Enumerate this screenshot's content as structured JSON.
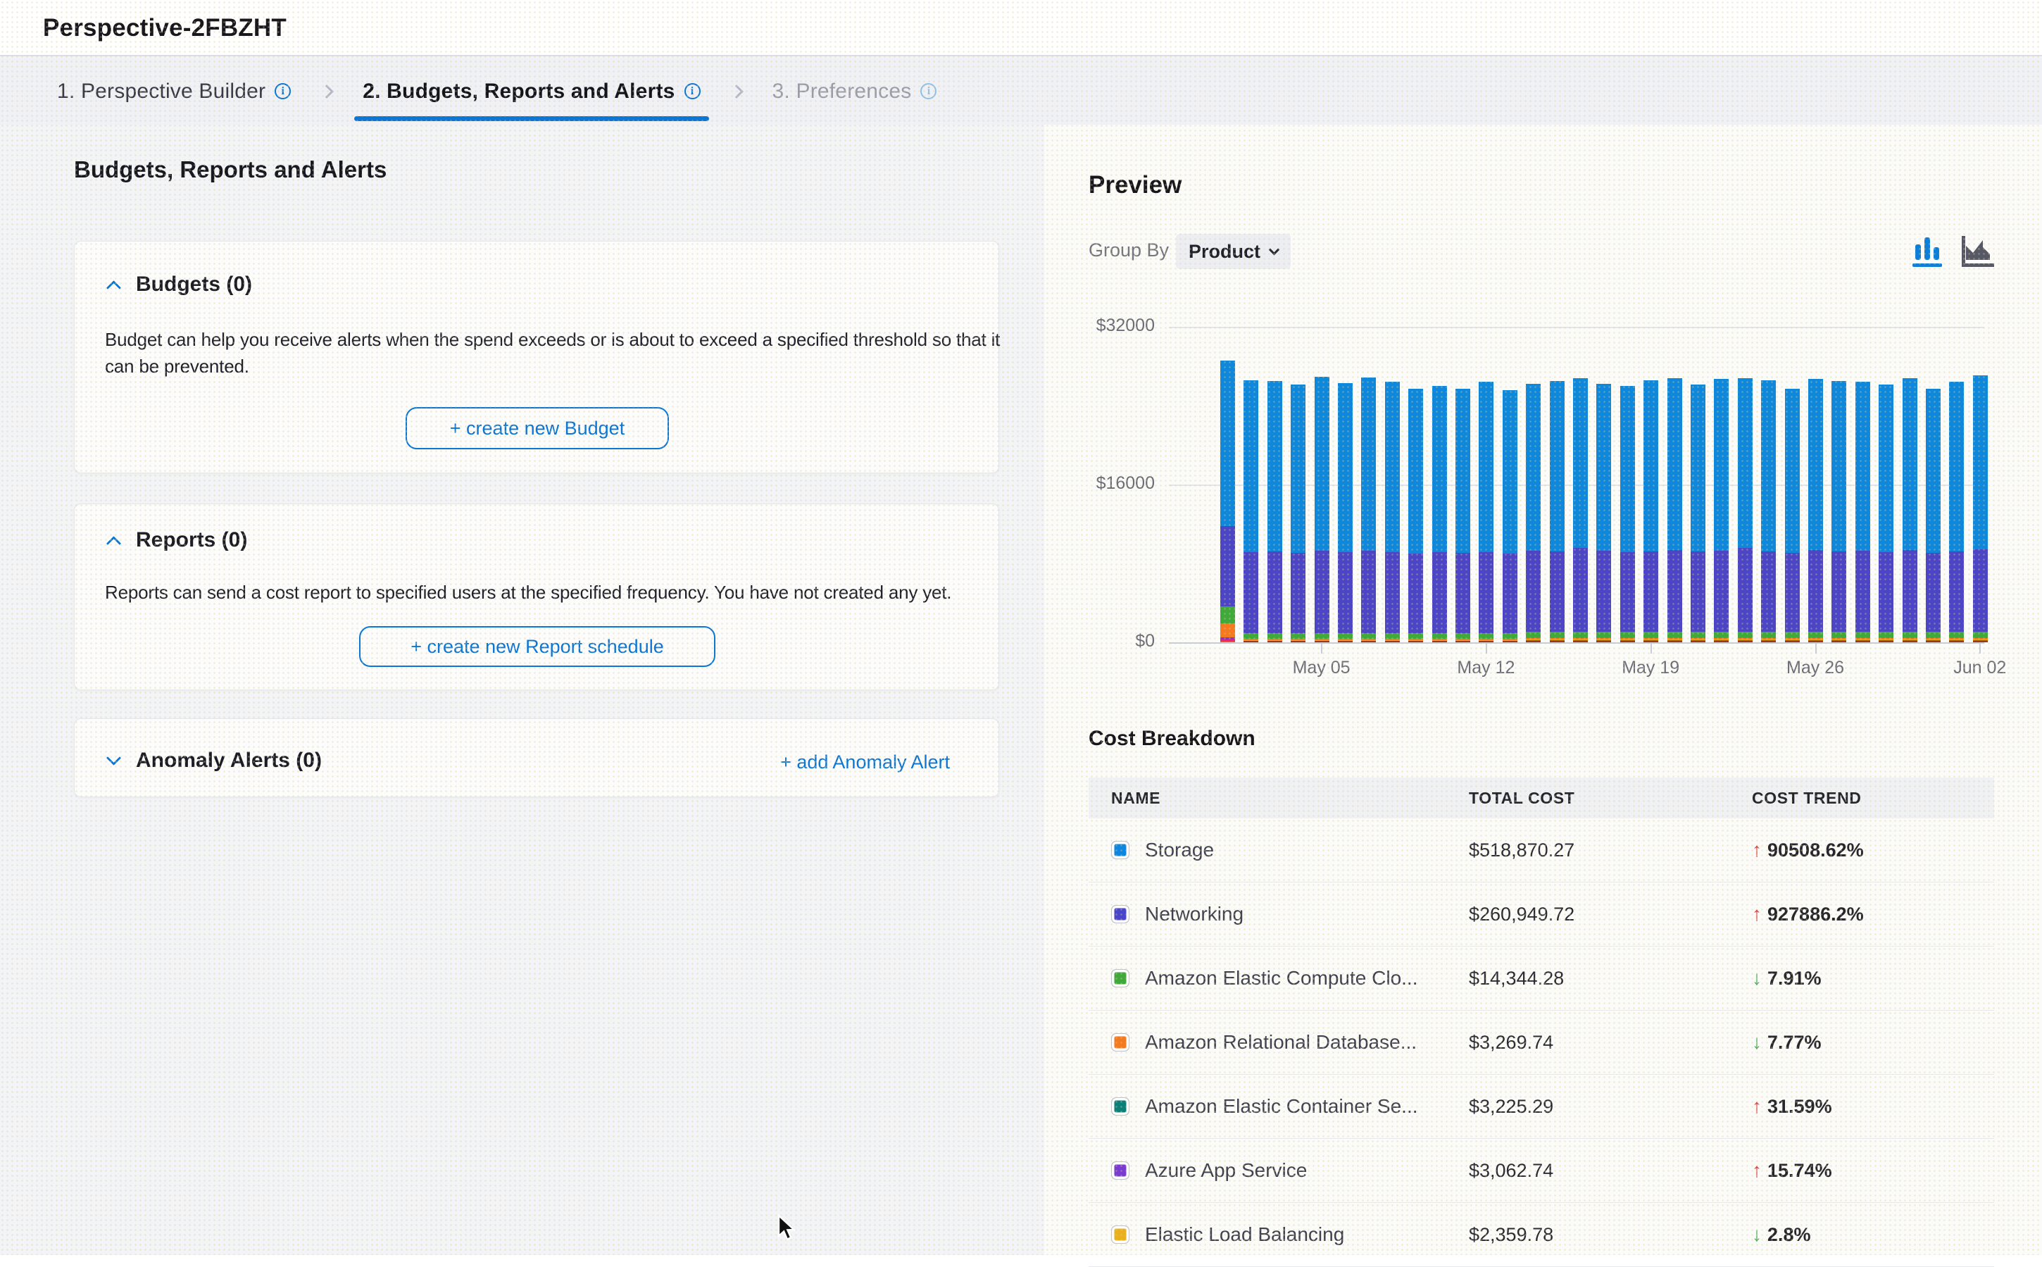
{
  "window": {
    "title": "Perspective-2FBZHT"
  },
  "tabs": [
    {
      "label": "1. Perspective Builder",
      "active": false
    },
    {
      "label": "2. Budgets, Reports and Alerts",
      "active": true
    },
    {
      "label": "3. Preferences",
      "active": false
    }
  ],
  "info_icon_glyph": "i",
  "left": {
    "heading": "Budgets, Reports and Alerts",
    "budgets": {
      "title": "Budgets (0)",
      "description": "Budget can help you receive alerts when the spend exceeds or is about to exceed a specified threshold so that it can be prevented.",
      "button": "+ create new Budget"
    },
    "reports": {
      "title": "Reports (0)",
      "description": "Reports can send a cost report to specified users at the specified frequency. You have not created any yet.",
      "button": "+ create new Report schedule"
    },
    "anomaly": {
      "title": "Anomaly Alerts (0)",
      "link": "+ add Anomaly Alert"
    }
  },
  "preview": {
    "title": "Preview",
    "group_by_label": "Group By",
    "group_by_value": "Product"
  },
  "chart_data": {
    "type": "bar",
    "stacked": true,
    "title": "",
    "ylim": [
      0,
      32000
    ],
    "y_ticks": [
      "$32000",
      "$16000",
      "$0"
    ],
    "x_ticks": [
      "May 05",
      "May 12",
      "May 19",
      "May 26",
      "Jun 02"
    ],
    "tick_bar_index": [
      4,
      11,
      18,
      25,
      32
    ],
    "palette": {
      "storage": "#0f88dc",
      "networking": "#4c45c5",
      "ec2": "#3fa93c",
      "rds": "#f5791f",
      "ecs": "#0c7f7b",
      "azure": "#7a3bd0",
      "elb": "#eab01c",
      "misc": "#9a3b16",
      "magenta": "#e0218a",
      "red": "#e23535",
      "cyan": "#27c0cf"
    },
    "bars": [
      [
        [
          "cyan",
          90
        ],
        [
          "red",
          100
        ],
        [
          "magenta",
          100
        ],
        [
          "azure",
          110
        ],
        [
          "ecs",
          100
        ],
        [
          "rds",
          1430
        ],
        [
          "ec2",
          1700
        ],
        [
          "networking",
          8150
        ],
        [
          "storage",
          16820
        ]
      ],
      [
        [
          "misc",
          120
        ],
        [
          "elb",
          90
        ],
        [
          "rds",
          130
        ],
        [
          "ec2",
          620
        ],
        [
          "networking",
          8200
        ],
        [
          "storage",
          17390
        ]
      ],
      [
        [
          "misc",
          120
        ],
        [
          "elb",
          90
        ],
        [
          "rds",
          130
        ],
        [
          "ec2",
          620
        ],
        [
          "networking",
          8250
        ],
        [
          "storage",
          17290
        ]
      ],
      [
        [
          "misc",
          120
        ],
        [
          "elb",
          90
        ],
        [
          "rds",
          130
        ],
        [
          "ec2",
          620
        ],
        [
          "networking",
          8100
        ],
        [
          "storage",
          17090
        ]
      ],
      [
        [
          "misc",
          120
        ],
        [
          "elb",
          90
        ],
        [
          "rds",
          130
        ],
        [
          "ec2",
          620
        ],
        [
          "networking",
          8300
        ],
        [
          "storage",
          17640
        ]
      ],
      [
        [
          "misc",
          120
        ],
        [
          "elb",
          90
        ],
        [
          "rds",
          130
        ],
        [
          "ec2",
          620
        ],
        [
          "networking",
          8200
        ],
        [
          "storage",
          17140
        ]
      ],
      [
        [
          "misc",
          120
        ],
        [
          "elb",
          90
        ],
        [
          "rds",
          130
        ],
        [
          "ec2",
          620
        ],
        [
          "networking",
          8350
        ],
        [
          "storage",
          17540
        ]
      ],
      [
        [
          "misc",
          120
        ],
        [
          "elb",
          90
        ],
        [
          "rds",
          130
        ],
        [
          "ec2",
          620
        ],
        [
          "networking",
          8200
        ],
        [
          "storage",
          17240
        ]
      ],
      [
        [
          "misc",
          120
        ],
        [
          "elb",
          90
        ],
        [
          "rds",
          130
        ],
        [
          "ec2",
          620
        ],
        [
          "networking",
          8050
        ],
        [
          "storage",
          16740
        ]
      ],
      [
        [
          "misc",
          120
        ],
        [
          "elb",
          90
        ],
        [
          "rds",
          130
        ],
        [
          "ec2",
          620
        ],
        [
          "networking",
          8150
        ],
        [
          "storage",
          16890
        ]
      ],
      [
        [
          "misc",
          120
        ],
        [
          "elb",
          90
        ],
        [
          "rds",
          130
        ],
        [
          "ec2",
          620
        ],
        [
          "networking",
          8100
        ],
        [
          "storage",
          16640
        ]
      ],
      [
        [
          "misc",
          120
        ],
        [
          "elb",
          90
        ],
        [
          "rds",
          130
        ],
        [
          "ec2",
          620
        ],
        [
          "networking",
          8200
        ],
        [
          "storage",
          17240
        ]
      ],
      [
        [
          "misc",
          120
        ],
        [
          "elb",
          90
        ],
        [
          "rds",
          130
        ],
        [
          "ec2",
          620
        ],
        [
          "networking",
          8050
        ],
        [
          "storage",
          16590
        ]
      ],
      [
        [
          "misc",
          120
        ],
        [
          "red",
          40
        ],
        [
          "magenta",
          50
        ],
        [
          "elb",
          90
        ],
        [
          "rds",
          130
        ],
        [
          "ec2",
          620
        ],
        [
          "networking",
          8250
        ],
        [
          "storage",
          16950
        ]
      ],
      [
        [
          "misc",
          120
        ],
        [
          "red",
          40
        ],
        [
          "magenta",
          50
        ],
        [
          "elb",
          90
        ],
        [
          "rds",
          130
        ],
        [
          "ec2",
          620
        ],
        [
          "networking",
          8200
        ],
        [
          "storage",
          17250
        ]
      ],
      [
        [
          "misc",
          120
        ],
        [
          "red",
          40
        ],
        [
          "magenta",
          50
        ],
        [
          "elb",
          90
        ],
        [
          "rds",
          130
        ],
        [
          "ec2",
          620
        ],
        [
          "networking",
          8500
        ],
        [
          "storage",
          17250
        ]
      ],
      [
        [
          "misc",
          120
        ],
        [
          "red",
          40
        ],
        [
          "magenta",
          50
        ],
        [
          "elb",
          90
        ],
        [
          "rds",
          130
        ],
        [
          "ec2",
          620
        ],
        [
          "networking",
          8250
        ],
        [
          "storage",
          16950
        ]
      ],
      [
        [
          "misc",
          120
        ],
        [
          "red",
          40
        ],
        [
          "magenta",
          50
        ],
        [
          "elb",
          90
        ],
        [
          "rds",
          130
        ],
        [
          "ec2",
          620
        ],
        [
          "networking",
          8100
        ],
        [
          "storage",
          16850
        ]
      ],
      [
        [
          "misc",
          120
        ],
        [
          "red",
          40
        ],
        [
          "magenta",
          50
        ],
        [
          "elb",
          90
        ],
        [
          "rds",
          130
        ],
        [
          "ec2",
          620
        ],
        [
          "networking",
          8200
        ],
        [
          "storage",
          17300
        ]
      ],
      [
        [
          "misc",
          120
        ],
        [
          "red",
          40
        ],
        [
          "magenta",
          50
        ],
        [
          "elb",
          90
        ],
        [
          "rds",
          130
        ],
        [
          "ec2",
          620
        ],
        [
          "networking",
          8300
        ],
        [
          "storage",
          17450
        ]
      ],
      [
        [
          "misc",
          120
        ],
        [
          "red",
          40
        ],
        [
          "magenta",
          50
        ],
        [
          "elb",
          90
        ],
        [
          "rds",
          130
        ],
        [
          "ec2",
          620
        ],
        [
          "networking",
          8150
        ],
        [
          "storage",
          16950
        ]
      ],
      [
        [
          "misc",
          120
        ],
        [
          "red",
          40
        ],
        [
          "magenta",
          50
        ],
        [
          "elb",
          90
        ],
        [
          "rds",
          130
        ],
        [
          "ec2",
          620
        ],
        [
          "networking",
          8250
        ],
        [
          "storage",
          17400
        ]
      ],
      [
        [
          "misc",
          120
        ],
        [
          "red",
          40
        ],
        [
          "magenta",
          50
        ],
        [
          "elb",
          90
        ],
        [
          "rds",
          130
        ],
        [
          "ec2",
          620
        ],
        [
          "networking",
          8500
        ],
        [
          "storage",
          17250
        ]
      ],
      [
        [
          "misc",
          120
        ],
        [
          "red",
          40
        ],
        [
          "magenta",
          50
        ],
        [
          "elb",
          90
        ],
        [
          "rds",
          130
        ],
        [
          "ec2",
          620
        ],
        [
          "networking",
          8200
        ],
        [
          "storage",
          17300
        ]
      ],
      [
        [
          "misc",
          120
        ],
        [
          "red",
          40
        ],
        [
          "magenta",
          50
        ],
        [
          "elb",
          90
        ],
        [
          "rds",
          130
        ],
        [
          "ec2",
          620
        ],
        [
          "networking",
          8050
        ],
        [
          "storage",
          16650
        ]
      ],
      [
        [
          "misc",
          120
        ],
        [
          "red",
          40
        ],
        [
          "magenta",
          50
        ],
        [
          "elb",
          90
        ],
        [
          "rds",
          130
        ],
        [
          "ec2",
          620
        ],
        [
          "networking",
          8300
        ],
        [
          "storage",
          17400
        ]
      ],
      [
        [
          "misc",
          120
        ],
        [
          "red",
          40
        ],
        [
          "magenta",
          50
        ],
        [
          "elb",
          90
        ],
        [
          "rds",
          130
        ],
        [
          "ec2",
          620
        ],
        [
          "networking",
          8200
        ],
        [
          "storage",
          17250
        ]
      ],
      [
        [
          "misc",
          120
        ],
        [
          "red",
          40
        ],
        [
          "magenta",
          50
        ],
        [
          "elb",
          90
        ],
        [
          "rds",
          130
        ],
        [
          "ec2",
          620
        ],
        [
          "networking",
          8250
        ],
        [
          "storage",
          17100
        ]
      ],
      [
        [
          "misc",
          120
        ],
        [
          "red",
          40
        ],
        [
          "magenta",
          50
        ],
        [
          "elb",
          90
        ],
        [
          "rds",
          130
        ],
        [
          "ec2",
          620
        ],
        [
          "networking",
          8100
        ],
        [
          "storage",
          17000
        ]
      ],
      [
        [
          "misc",
          120
        ],
        [
          "red",
          40
        ],
        [
          "magenta",
          50
        ],
        [
          "elb",
          90
        ],
        [
          "rds",
          130
        ],
        [
          "ec2",
          620
        ],
        [
          "networking",
          8300
        ],
        [
          "storage",
          17450
        ]
      ],
      [
        [
          "misc",
          120
        ],
        [
          "red",
          40
        ],
        [
          "magenta",
          50
        ],
        [
          "elb",
          90
        ],
        [
          "rds",
          130
        ],
        [
          "ec2",
          620
        ],
        [
          "networking",
          8050
        ],
        [
          "storage",
          16600
        ]
      ],
      [
        [
          "misc",
          120
        ],
        [
          "red",
          40
        ],
        [
          "magenta",
          50
        ],
        [
          "elb",
          90
        ],
        [
          "rds",
          130
        ],
        [
          "ec2",
          620
        ],
        [
          "networking",
          8200
        ],
        [
          "storage",
          17150
        ]
      ],
      [
        [
          "misc",
          120
        ],
        [
          "red",
          40
        ],
        [
          "magenta",
          50
        ],
        [
          "elb",
          90
        ],
        [
          "rds",
          130
        ],
        [
          "ec2",
          620
        ],
        [
          "networking",
          8400
        ],
        [
          "storage",
          17600
        ]
      ]
    ]
  },
  "breakdown": {
    "title": "Cost Breakdown",
    "columns": [
      "NAME",
      "TOTAL COST",
      "COST TREND"
    ],
    "rows": [
      {
        "name": "Storage",
        "color": "#0d86e2",
        "total": "$518,870.27",
        "trend": "90508.62%",
        "direction": "up"
      },
      {
        "name": "Networking",
        "color": "#4a46cb",
        "total": "$260,949.72",
        "trend": "927886.2%",
        "direction": "up"
      },
      {
        "name": "Amazon Elastic Compute Clo...",
        "color": "#3fa93c",
        "total": "$14,344.28",
        "trend": "7.91%",
        "direction": "down"
      },
      {
        "name": "Amazon Relational Database...",
        "color": "#f5791f",
        "total": "$3,269.74",
        "trend": "7.77%",
        "direction": "down"
      },
      {
        "name": "Amazon Elastic Container Se...",
        "color": "#0c7f7b",
        "total": "$3,225.29",
        "trend": "31.59%",
        "direction": "up"
      },
      {
        "name": "Azure App Service",
        "color": "#7a3bd0",
        "total": "$3,062.74",
        "trend": "15.74%",
        "direction": "up"
      },
      {
        "name": "Elastic Load Balancing",
        "color": "#eab01c",
        "total": "$2,359.78",
        "trend": "2.8%",
        "direction": "down"
      }
    ]
  }
}
